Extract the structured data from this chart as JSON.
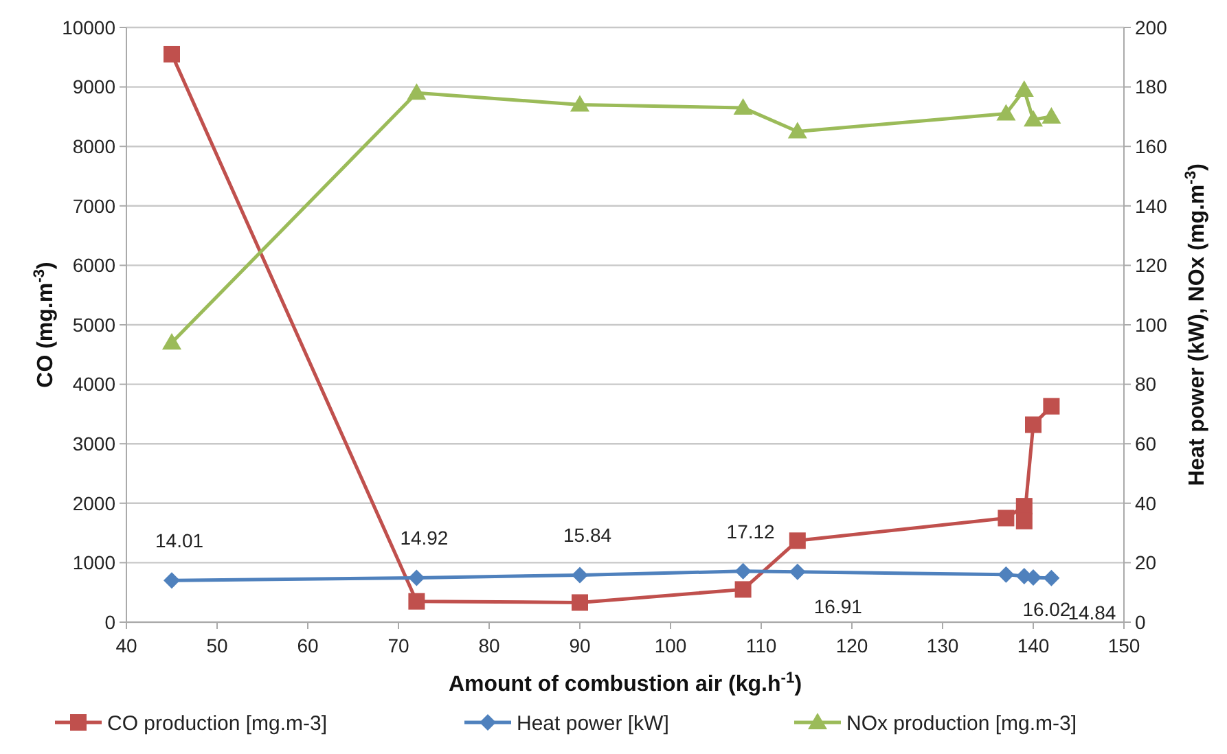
{
  "chart_data": {
    "type": "line",
    "xlabel": "Amount of combustion air (kg.h$^{-1}$)",
    "ylabel": "CO (mg.m$^{-3}$)",
    "y2label": "Heat power (kW), NOx (mg.m$^{-3}$)",
    "xlim": [
      40,
      150
    ],
    "xticks": [
      40,
      50,
      60,
      70,
      80,
      90,
      100,
      110,
      120,
      130,
      140,
      150
    ],
    "ylim": [
      0,
      10000
    ],
    "yticks": [
      0,
      1000,
      2000,
      3000,
      4000,
      5000,
      6000,
      7000,
      8000,
      9000,
      10000
    ],
    "y2lim": [
      0,
      200
    ],
    "y2ticks": [
      0,
      20,
      40,
      60,
      80,
      100,
      120,
      140,
      160,
      180,
      200
    ],
    "grid": "y",
    "legend": "bottom",
    "series": [
      {
        "name": "CO production [mg.m-3]",
        "color": "#c0504d",
        "marker": "square",
        "x": [
          45,
          72,
          90,
          108,
          114,
          137,
          139,
          139,
          140,
          142
        ],
        "values": [
          9550,
          350,
          330,
          550,
          1370,
          1750,
          1950,
          1700,
          3320,
          3630
        ]
      },
      {
        "name": "Heat power [kW]",
        "color": "#4f81bd",
        "marker": "diamond",
        "axis": "y2",
        "x": [
          45,
          72,
          90,
          108,
          114,
          137,
          139,
          140,
          142
        ],
        "values": [
          14.01,
          14.92,
          15.84,
          17.12,
          16.91,
          16.02,
          15.5,
          15.0,
          14.84
        ],
        "value_labels": [
          "14.01",
          "14.92",
          "15.84",
          "17.12",
          "16.91",
          "16.02",
          null,
          null,
          "14.84"
        ]
      },
      {
        "name": "NOx production [mg.m-3]",
        "color": "#9bbb59",
        "marker": "triangle",
        "axis": "y2",
        "x": [
          45,
          72,
          90,
          108,
          114,
          137,
          139,
          140,
          142
        ],
        "values": [
          94,
          178,
          174,
          173,
          165,
          171,
          179,
          169,
          170
        ]
      }
    ]
  }
}
